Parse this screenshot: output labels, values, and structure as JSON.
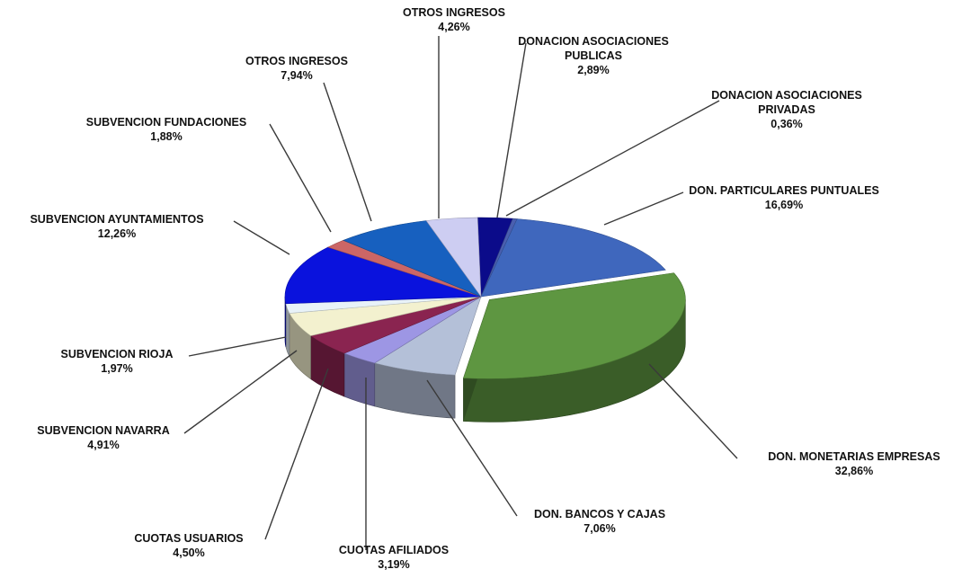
{
  "chart_data": {
    "type": "pie",
    "style": "3d-exploded-tilted",
    "slices": [
      {
        "label": "DONACION ASOCIACIONES\nPUBLICAS",
        "value": 2.89,
        "display": "2,89%",
        "color": "#0b0b8a"
      },
      {
        "label": "DONACION ASOCIACIONES\nPRIVADAS",
        "value": 0.36,
        "display": "0,36%",
        "color": "#4a5fb0"
      },
      {
        "label": "DON. PARTICULARES PUNTUALES",
        "value": 16.69,
        "display": "16,69%",
        "color": "#3f67bd"
      },
      {
        "label": "DON. MONETARIAS  EMPRESAS",
        "value": 32.86,
        "display": "32,86%",
        "color": "#5e9641"
      },
      {
        "label": "DON. BANCOS Y CAJAS",
        "value": 7.06,
        "display": "7,06%",
        "color": "#b4c0d8"
      },
      {
        "label": "CUOTAS AFILIADOS",
        "value": 3.19,
        "display": "3,19%",
        "color": "#9d96e4"
      },
      {
        "label": "CUOTAS USUARIOS",
        "value": 4.5,
        "display": "4,50%",
        "color": "#8a2450"
      },
      {
        "label": "SUBVENCION NAVARRA",
        "value": 4.91,
        "display": "4,91%",
        "color": "#f3f1cf"
      },
      {
        "label": "SUBVENCION RIOJA",
        "value": 1.97,
        "display": "1,97%",
        "color": "#e8f2f8"
      },
      {
        "label": "SUBVENCION AYUNTAMIENTOS",
        "value": 12.26,
        "display": "12,26%",
        "color": "#0a12dd"
      },
      {
        "label": "SUBVENCION FUNDACIONES",
        "value": 1.88,
        "display": "1,88%",
        "color": "#cc6666"
      },
      {
        "label": "OTROS INGRESOS",
        "value": 7.94,
        "display": "7,94%",
        "color": "#1760bf"
      },
      {
        "label": "OTROS INGRESOS",
        "value": 4.26,
        "display": "4,26%",
        "color": "#cdcdf2"
      }
    ]
  }
}
